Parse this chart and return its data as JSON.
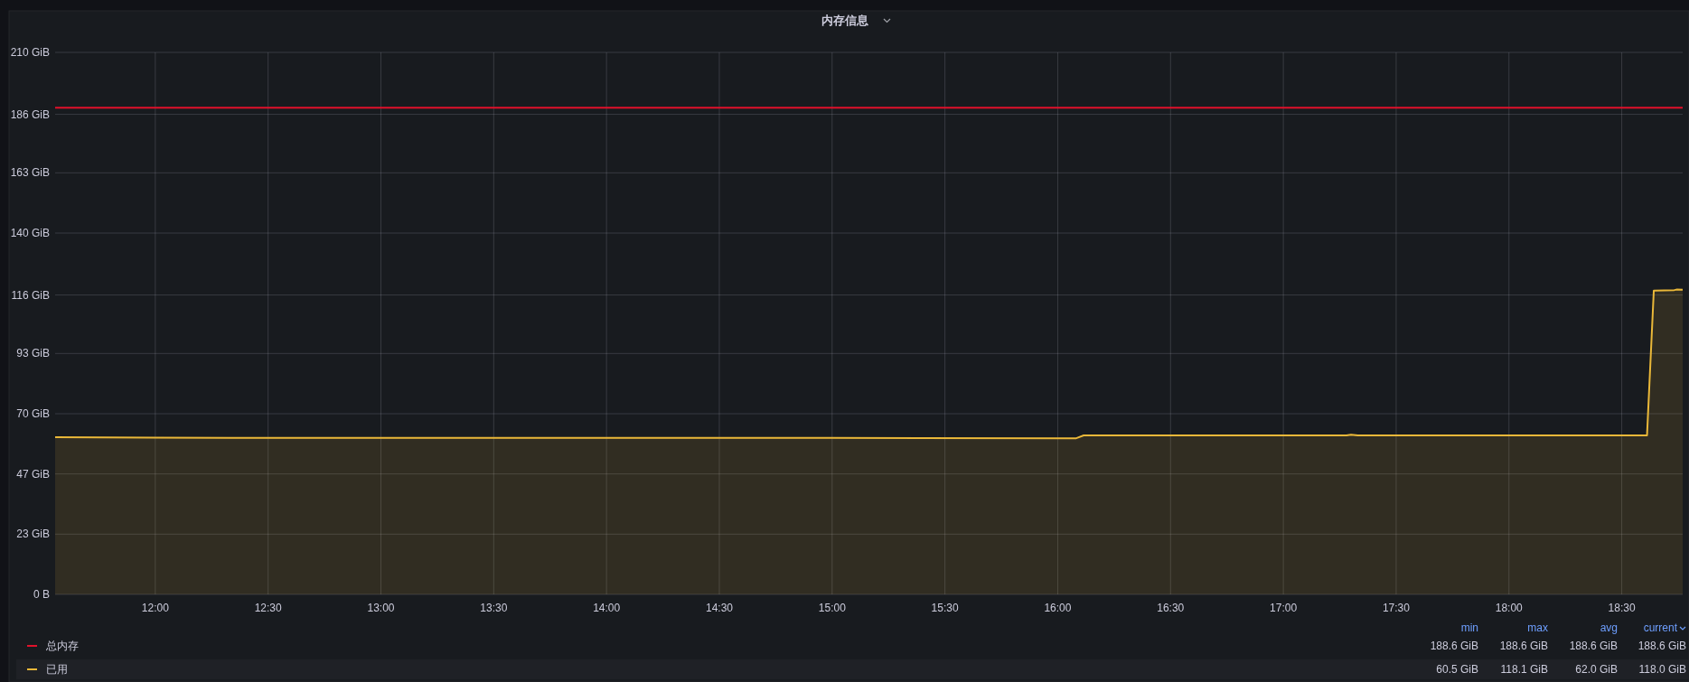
{
  "chart_data": {
    "type": "line",
    "title": "内存信息",
    "xlim": [
      11.556,
      18.77
    ],
    "xticks": [
      {
        "value": 12,
        "label": "12:00"
      },
      {
        "value": 12.5,
        "label": "12:30"
      },
      {
        "value": 13,
        "label": "13:00"
      },
      {
        "value": 13.5,
        "label": "13:30"
      },
      {
        "value": 14,
        "label": "14:00"
      },
      {
        "value": 14.5,
        "label": "14:30"
      },
      {
        "value": 15,
        "label": "15:00"
      },
      {
        "value": 15.5,
        "label": "15:30"
      },
      {
        "value": 16,
        "label": "16:00"
      },
      {
        "value": 16.5,
        "label": "16:30"
      },
      {
        "value": 17,
        "label": "17:00"
      },
      {
        "value": 17.5,
        "label": "17:30"
      },
      {
        "value": 18,
        "label": "18:00"
      },
      {
        "value": 18.5,
        "label": "18:30"
      }
    ],
    "ylim": [
      0,
      210
    ],
    "yticks": [
      {
        "value": 0,
        "label": "0 B"
      },
      {
        "value": 23.33,
        "label": "23 GiB"
      },
      {
        "value": 46.67,
        "label": "47 GiB"
      },
      {
        "value": 70,
        "label": "70 GiB"
      },
      {
        "value": 93.33,
        "label": "93 GiB"
      },
      {
        "value": 116,
        "label": "116 GiB"
      },
      {
        "value": 140,
        "label": "140 GiB"
      },
      {
        "value": 163.33,
        "label": "163 GiB"
      },
      {
        "value": 186,
        "label": "186 GiB"
      },
      {
        "value": 210,
        "label": "210 GiB"
      }
    ],
    "grid": true,
    "legend": "bottom left",
    "series": [
      {
        "name": "总内存",
        "type": "line",
        "color": "#e0112b",
        "x": [
          11.556,
          18.77
        ],
        "values": [
          188.6,
          188.6
        ]
      },
      {
        "name": "已用",
        "type": "area",
        "color": "#eab839",
        "x": [
          11.556,
          12.0,
          13.0,
          14.0,
          15.0,
          16.082,
          16.115,
          17.28,
          17.3,
          17.33,
          18.6,
          18.612,
          18.642,
          18.733,
          18.745,
          18.77
        ],
        "values": [
          60.9,
          60.7,
          60.6,
          60.6,
          60.6,
          60.5,
          61.6,
          61.6,
          61.9,
          61.6,
          61.6,
          61.6,
          117.7,
          117.9,
          118.1,
          118.0
        ]
      }
    ],
    "annotations": [
      "min",
      "max",
      "avg",
      "current",
      "188.6 GiB",
      "188.6 GiB",
      "188.6 GiB",
      "188.6 GiB",
      "60.5 GiB",
      "118.1 GiB",
      "62.0 GiB",
      "118.0 GiB"
    ]
  }
}
